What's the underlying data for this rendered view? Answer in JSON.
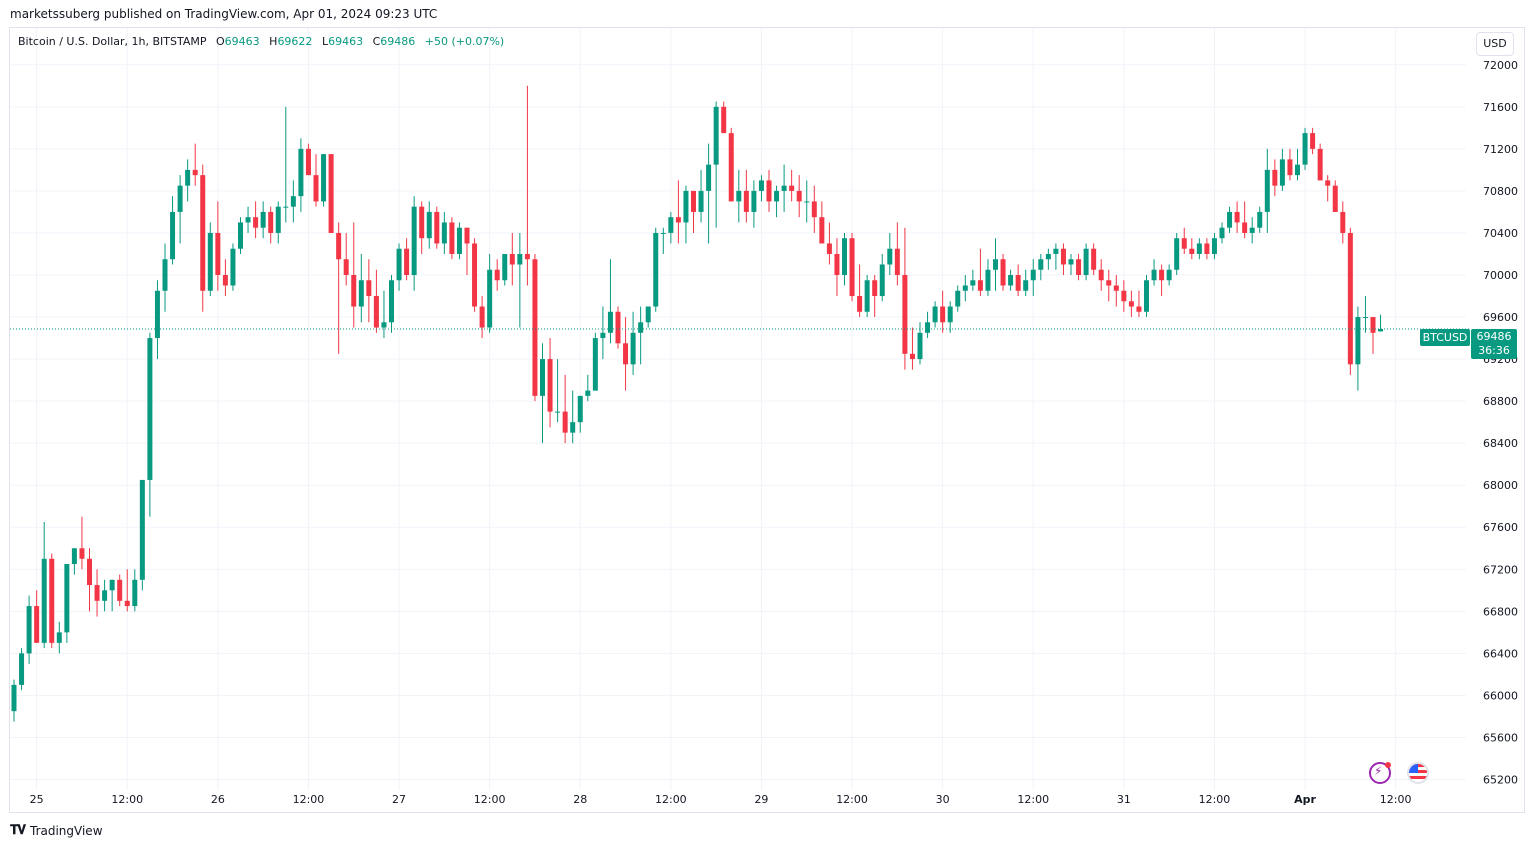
{
  "header": {
    "publisher_line": "marketssuberg published on TradingView.com, Apr 01, 2024 09:23 UTC"
  },
  "legend": {
    "symbol": "Bitcoin / U.S. Dollar, 1h, BITSTAMP",
    "o_label": "O",
    "o_value": "69463",
    "h_label": "H",
    "h_value": "69622",
    "l_label": "L",
    "l_value": "69463",
    "c_label": "C",
    "c_value": "69486",
    "change": "+50 (+0.07%)"
  },
  "currency": "USD",
  "price_tag": {
    "symbol": "BTCUSD",
    "price": "69486",
    "countdown": "36:36"
  },
  "footer": {
    "brand": "TradingView"
  },
  "icons": {
    "flash": "flash-icon",
    "flag": "us-flag-icon",
    "logo": "tradingview-logo-icon"
  },
  "colors": {
    "up": "#089981",
    "down": "#f23645",
    "grid": "#f0f3fa",
    "axis_text": "#131722"
  },
  "chart_data": {
    "type": "candlestick",
    "timeframe": "1h",
    "ylim": [
      65100,
      72350
    ],
    "y_ticks": [
      65200,
      65600,
      66000,
      66400,
      66800,
      67200,
      67600,
      68000,
      68400,
      68800,
      69200,
      69600,
      70000,
      70400,
      70800,
      71200,
      71600,
      72000
    ],
    "x_ticks": [
      {
        "label": "25",
        "index": 3
      },
      {
        "label": "12:00",
        "index": 15
      },
      {
        "label": "26",
        "index": 27
      },
      {
        "label": "12:00",
        "index": 39
      },
      {
        "label": "27",
        "index": 51
      },
      {
        "label": "12:00",
        "index": 63
      },
      {
        "label": "28",
        "index": 75
      },
      {
        "label": "12:00",
        "index": 87
      },
      {
        "label": "29",
        "index": 99
      },
      {
        "label": "12:00",
        "index": 111
      },
      {
        "label": "30",
        "index": 123
      },
      {
        "label": "12:00",
        "index": 135
      },
      {
        "label": "31",
        "index": 147
      },
      {
        "label": "12:00",
        "index": 159
      },
      {
        "label": "Apr",
        "index": 171
      },
      {
        "label": "12:00",
        "index": 183
      }
    ],
    "last_price": 69486,
    "candles": [
      [
        65850,
        66150,
        65750,
        66100
      ],
      [
        66100,
        66450,
        66050,
        66400
      ],
      [
        66400,
        66950,
        66300,
        66850
      ],
      [
        66850,
        67000,
        66500,
        66500
      ],
      [
        66500,
        67650,
        66450,
        67300
      ],
      [
        67300,
        67350,
        66450,
        66500
      ],
      [
        66500,
        66700,
        66400,
        66600
      ],
      [
        66600,
        67250,
        66500,
        67250
      ],
      [
        67250,
        67400,
        67150,
        67400
      ],
      [
        67400,
        67700,
        67200,
        67300
      ],
      [
        67300,
        67400,
        66800,
        67050
      ],
      [
        67050,
        67200,
        66750,
        66900
      ],
      [
        66900,
        67100,
        66800,
        67000
      ],
      [
        67000,
        67100,
        66800,
        67100
      ],
      [
        67100,
        67150,
        66850,
        66900
      ],
      [
        66900,
        67200,
        66800,
        66850
      ],
      [
        66850,
        67200,
        66800,
        67100
      ],
      [
        67100,
        68050,
        67000,
        68050
      ],
      [
        68050,
        69450,
        67700,
        69400
      ],
      [
        69400,
        69950,
        69200,
        69850
      ],
      [
        69850,
        70300,
        69650,
        70150
      ],
      [
        70150,
        70750,
        70100,
        70600
      ],
      [
        70600,
        70950,
        70300,
        70850
      ],
      [
        70850,
        71100,
        70700,
        71000
      ],
      [
        71000,
        71250,
        70850,
        70950
      ],
      [
        70950,
        71050,
        69650,
        69850
      ],
      [
        69850,
        70500,
        69800,
        70400
      ],
      [
        70400,
        70700,
        69850,
        70000
      ],
      [
        70000,
        70150,
        69800,
        69900
      ],
      [
        69900,
        70300,
        69850,
        70250
      ],
      [
        70250,
        70550,
        70200,
        70500
      ],
      [
        70500,
        70650,
        70400,
        70550
      ],
      [
        70550,
        70700,
        70350,
        70450
      ],
      [
        70450,
        70700,
        70350,
        70600
      ],
      [
        70600,
        70650,
        70300,
        70400
      ],
      [
        70400,
        70700,
        70300,
        70650
      ],
      [
        70650,
        71600,
        70500,
        70650
      ],
      [
        70650,
        70900,
        70500,
        70750
      ],
      [
        70750,
        71300,
        70600,
        71200
      ],
      [
        71200,
        71250,
        70950,
        70950
      ],
      [
        70950,
        71150,
        70650,
        70700
      ],
      [
        70700,
        71150,
        70650,
        71150
      ],
      [
        71150,
        71150,
        70400,
        70400
      ],
      [
        70400,
        70500,
        69250,
        70150
      ],
      [
        70150,
        70400,
        69900,
        70000
      ],
      [
        70000,
        70500,
        69500,
        69700
      ],
      [
        69700,
        70200,
        69550,
        69950
      ],
      [
        69950,
        70150,
        69550,
        69800
      ],
      [
        69800,
        70050,
        69450,
        69500
      ],
      [
        69500,
        69850,
        69400,
        69550
      ],
      [
        69550,
        70000,
        69450,
        69950
      ],
      [
        69950,
        70300,
        69850,
        70250
      ],
      [
        70250,
        70350,
        69950,
        70000
      ],
      [
        70000,
        70750,
        69850,
        70650
      ],
      [
        70650,
        70700,
        70200,
        70350
      ],
      [
        70350,
        70700,
        70250,
        70600
      ],
      [
        70600,
        70650,
        70250,
        70300
      ],
      [
        70300,
        70600,
        70200,
        70500
      ],
      [
        70500,
        70550,
        70150,
        70200
      ],
      [
        70200,
        70500,
        70150,
        70450
      ],
      [
        70450,
        70450,
        70000,
        70300
      ],
      [
        70300,
        70350,
        69650,
        69700
      ],
      [
        69700,
        69800,
        69400,
        69500
      ],
      [
        69500,
        70200,
        69450,
        70050
      ],
      [
        70050,
        70150,
        69850,
        69950
      ],
      [
        69950,
        70200,
        69900,
        70200
      ],
      [
        70200,
        70400,
        69900,
        70100
      ],
      [
        70100,
        70400,
        69500,
        70200
      ],
      [
        70200,
        71800,
        69900,
        70150
      ],
      [
        70150,
        70200,
        68800,
        68850
      ],
      [
        68850,
        69350,
        68400,
        69200
      ],
      [
        69200,
        69400,
        68550,
        68700
      ],
      [
        68700,
        69200,
        68600,
        68700
      ],
      [
        68700,
        69050,
        68400,
        68500
      ],
      [
        68500,
        68900,
        68400,
        68600
      ],
      [
        68600,
        68850,
        68500,
        68850
      ],
      [
        68850,
        69050,
        68800,
        68900
      ],
      [
        68900,
        69450,
        68900,
        69400
      ],
      [
        69400,
        69700,
        69200,
        69450
      ],
      [
        69450,
        70150,
        69350,
        69650
      ],
      [
        69650,
        69700,
        69300,
        69350
      ],
      [
        69350,
        69600,
        68900,
        69150
      ],
      [
        69150,
        69650,
        69050,
        69450
      ],
      [
        69450,
        69700,
        69150,
        69550
      ],
      [
        69550,
        69700,
        69500,
        69700
      ],
      [
        69700,
        70450,
        69650,
        70400
      ],
      [
        70400,
        70450,
        70200,
        70400
      ],
      [
        70400,
        70600,
        70300,
        70550
      ],
      [
        70550,
        70900,
        70300,
        70500
      ],
      [
        70500,
        70850,
        70300,
        70800
      ],
      [
        70800,
        70800,
        70400,
        70600
      ],
      [
        70600,
        71000,
        70500,
        70800
      ],
      [
        70800,
        71250,
        70300,
        71050
      ],
      [
        71050,
        71650,
        70450,
        71600
      ],
      [
        71600,
        71650,
        71350,
        71350
      ],
      [
        71350,
        71400,
        70700,
        70700
      ],
      [
        70700,
        71000,
        70500,
        70800
      ],
      [
        70800,
        71000,
        70500,
        70600
      ],
      [
        70600,
        70900,
        70450,
        70800
      ],
      [
        70800,
        70950,
        70700,
        70900
      ],
      [
        70900,
        71000,
        70600,
        70700
      ],
      [
        70700,
        70850,
        70550,
        70800
      ],
      [
        70800,
        71050,
        70600,
        70850
      ],
      [
        70850,
        71000,
        70700,
        70800
      ],
      [
        70800,
        70950,
        70550,
        70700
      ],
      [
        70700,
        70900,
        70500,
        70700
      ],
      [
        70700,
        70850,
        70400,
        70550
      ],
      [
        70550,
        70700,
        70300,
        70300
      ],
      [
        70300,
        70500,
        70100,
        70200
      ],
      [
        70200,
        70350,
        69800,
        70000
      ],
      [
        70000,
        70400,
        69900,
        70350
      ],
      [
        70350,
        70400,
        69750,
        69800
      ],
      [
        69800,
        70100,
        69600,
        69650
      ],
      [
        69650,
        70000,
        69600,
        69950
      ],
      [
        69950,
        70000,
        69600,
        69800
      ],
      [
        69800,
        70200,
        69750,
        70100
      ],
      [
        70100,
        70400,
        70000,
        70250
      ],
      [
        70250,
        70500,
        69900,
        70000
      ],
      [
        70000,
        70450,
        69100,
        69250
      ],
      [
        69250,
        69500,
        69100,
        69200
      ],
      [
        69200,
        69550,
        69150,
        69450
      ],
      [
        69450,
        69650,
        69400,
        69550
      ],
      [
        69550,
        69750,
        69500,
        69700
      ],
      [
        69700,
        69850,
        69450,
        69550
      ],
      [
        69550,
        69750,
        69450,
        69700
      ],
      [
        69700,
        69900,
        69650,
        69850
      ],
      [
        69850,
        70000,
        69750,
        69900
      ],
      [
        69900,
        70050,
        69850,
        69950
      ],
      [
        69950,
        70250,
        69800,
        69850
      ],
      [
        69850,
        70150,
        69800,
        70050
      ],
      [
        70050,
        70350,
        69850,
        70150
      ],
      [
        70150,
        70200,
        69850,
        69900
      ],
      [
        69900,
        70050,
        69850,
        70000
      ],
      [
        70000,
        70100,
        69800,
        69850
      ],
      [
        69850,
        70050,
        69800,
        69950
      ],
      [
        69950,
        70150,
        69800,
        70050
      ],
      [
        70050,
        70200,
        69950,
        70150
      ],
      [
        70150,
        70250,
        70050,
        70200
      ],
      [
        70200,
        70300,
        70050,
        70250
      ],
      [
        70250,
        70300,
        70000,
        70100
      ],
      [
        70100,
        70200,
        70000,
        70150
      ],
      [
        70150,
        70200,
        69950,
        70000
      ],
      [
        70000,
        70300,
        69950,
        70250
      ],
      [
        70250,
        70300,
        70000,
        70050
      ],
      [
        70050,
        70150,
        69850,
        69950
      ],
      [
        69950,
        70050,
        69750,
        69900
      ],
      [
        69900,
        70000,
        69700,
        69850
      ],
      [
        69850,
        69950,
        69650,
        69750
      ],
      [
        69750,
        69850,
        69600,
        69700
      ],
      [
        69700,
        69850,
        69600,
        69650
      ],
      [
        69650,
        70000,
        69600,
        69950
      ],
      [
        69950,
        70150,
        69900,
        70050
      ],
      [
        70050,
        70100,
        69800,
        69950
      ],
      [
        69950,
        70100,
        69900,
        70050
      ],
      [
        70050,
        70400,
        70000,
        70350
      ],
      [
        70350,
        70450,
        70200,
        70250
      ],
      [
        70250,
        70350,
        70150,
        70200
      ],
      [
        70200,
        70350,
        70150,
        70300
      ],
      [
        70300,
        70350,
        70150,
        70200
      ],
      [
        70200,
        70400,
        70150,
        70350
      ],
      [
        70350,
        70500,
        70300,
        70450
      ],
      [
        70450,
        70650,
        70400,
        70600
      ],
      [
        70600,
        70700,
        70400,
        70500
      ],
      [
        70500,
        70700,
        70350,
        70400
      ],
      [
        70400,
        70550,
        70300,
        70450
      ],
      [
        70450,
        70650,
        70400,
        70600
      ],
      [
        70600,
        71200,
        70400,
        71000
      ],
      [
        71000,
        71100,
        70750,
        70850
      ],
      [
        70850,
        71200,
        70800,
        71100
      ],
      [
        71100,
        71200,
        70900,
        70950
      ],
      [
        70950,
        71200,
        70900,
        71050
      ],
      [
        71050,
        71400,
        71000,
        71350
      ],
      [
        71350,
        71400,
        71150,
        71200
      ],
      [
        71200,
        71250,
        70900,
        70900
      ],
      [
        70900,
        70950,
        70700,
        70850
      ],
      [
        70850,
        70900,
        70600,
        70600
      ],
      [
        70600,
        70700,
        70300,
        70400
      ],
      [
        70400,
        70450,
        69050,
        69150
      ],
      [
        69150,
        69700,
        68900,
        69600
      ],
      [
        69600,
        69800,
        69450,
        69600
      ],
      [
        69600,
        69600,
        69250,
        69450
      ],
      [
        69463,
        69622,
        69463,
        69486
      ]
    ]
  }
}
